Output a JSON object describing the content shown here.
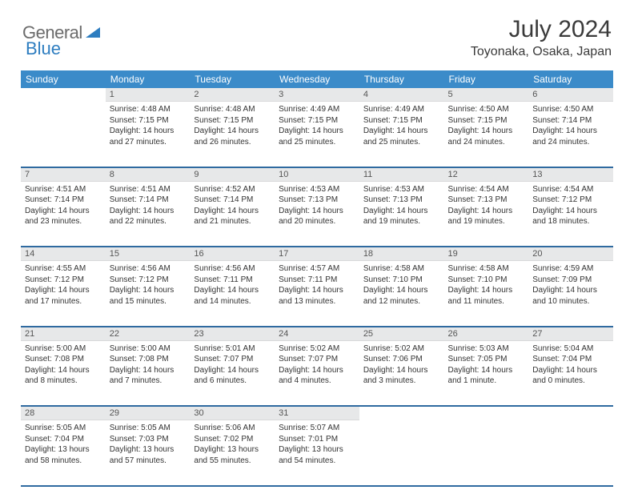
{
  "brand": {
    "part1": "General",
    "part2": "Blue"
  },
  "title": "July 2024",
  "location": "Toyonaka, Osaka, Japan",
  "colors": {
    "header_bg": "#3b8bc9",
    "header_text": "#ffffff",
    "daynum_bg": "#e7e8e9",
    "row_divider": "#2f6aa0",
    "text": "#333333",
    "brand_gray": "#6b6b6b",
    "brand_blue": "#2d7dc0"
  },
  "day_names": [
    "Sunday",
    "Monday",
    "Tuesday",
    "Wednesday",
    "Thursday",
    "Friday",
    "Saturday"
  ],
  "weeks": [
    {
      "nums": [
        "",
        "1",
        "2",
        "3",
        "4",
        "5",
        "6"
      ],
      "cells": [
        null,
        {
          "sunrise": "Sunrise: 4:48 AM",
          "sunset": "Sunset: 7:15 PM",
          "day1": "Daylight: 14 hours",
          "day2": "and 27 minutes."
        },
        {
          "sunrise": "Sunrise: 4:48 AM",
          "sunset": "Sunset: 7:15 PM",
          "day1": "Daylight: 14 hours",
          "day2": "and 26 minutes."
        },
        {
          "sunrise": "Sunrise: 4:49 AM",
          "sunset": "Sunset: 7:15 PM",
          "day1": "Daylight: 14 hours",
          "day2": "and 25 minutes."
        },
        {
          "sunrise": "Sunrise: 4:49 AM",
          "sunset": "Sunset: 7:15 PM",
          "day1": "Daylight: 14 hours",
          "day2": "and 25 minutes."
        },
        {
          "sunrise": "Sunrise: 4:50 AM",
          "sunset": "Sunset: 7:15 PM",
          "day1": "Daylight: 14 hours",
          "day2": "and 24 minutes."
        },
        {
          "sunrise": "Sunrise: 4:50 AM",
          "sunset": "Sunset: 7:14 PM",
          "day1": "Daylight: 14 hours",
          "day2": "and 24 minutes."
        }
      ]
    },
    {
      "nums": [
        "7",
        "8",
        "9",
        "10",
        "11",
        "12",
        "13"
      ],
      "cells": [
        {
          "sunrise": "Sunrise: 4:51 AM",
          "sunset": "Sunset: 7:14 PM",
          "day1": "Daylight: 14 hours",
          "day2": "and 23 minutes."
        },
        {
          "sunrise": "Sunrise: 4:51 AM",
          "sunset": "Sunset: 7:14 PM",
          "day1": "Daylight: 14 hours",
          "day2": "and 22 minutes."
        },
        {
          "sunrise": "Sunrise: 4:52 AM",
          "sunset": "Sunset: 7:14 PM",
          "day1": "Daylight: 14 hours",
          "day2": "and 21 minutes."
        },
        {
          "sunrise": "Sunrise: 4:53 AM",
          "sunset": "Sunset: 7:13 PM",
          "day1": "Daylight: 14 hours",
          "day2": "and 20 minutes."
        },
        {
          "sunrise": "Sunrise: 4:53 AM",
          "sunset": "Sunset: 7:13 PM",
          "day1": "Daylight: 14 hours",
          "day2": "and 19 minutes."
        },
        {
          "sunrise": "Sunrise: 4:54 AM",
          "sunset": "Sunset: 7:13 PM",
          "day1": "Daylight: 14 hours",
          "day2": "and 19 minutes."
        },
        {
          "sunrise": "Sunrise: 4:54 AM",
          "sunset": "Sunset: 7:12 PM",
          "day1": "Daylight: 14 hours",
          "day2": "and 18 minutes."
        }
      ]
    },
    {
      "nums": [
        "14",
        "15",
        "16",
        "17",
        "18",
        "19",
        "20"
      ],
      "cells": [
        {
          "sunrise": "Sunrise: 4:55 AM",
          "sunset": "Sunset: 7:12 PM",
          "day1": "Daylight: 14 hours",
          "day2": "and 17 minutes."
        },
        {
          "sunrise": "Sunrise: 4:56 AM",
          "sunset": "Sunset: 7:12 PM",
          "day1": "Daylight: 14 hours",
          "day2": "and 15 minutes."
        },
        {
          "sunrise": "Sunrise: 4:56 AM",
          "sunset": "Sunset: 7:11 PM",
          "day1": "Daylight: 14 hours",
          "day2": "and 14 minutes."
        },
        {
          "sunrise": "Sunrise: 4:57 AM",
          "sunset": "Sunset: 7:11 PM",
          "day1": "Daylight: 14 hours",
          "day2": "and 13 minutes."
        },
        {
          "sunrise": "Sunrise: 4:58 AM",
          "sunset": "Sunset: 7:10 PM",
          "day1": "Daylight: 14 hours",
          "day2": "and 12 minutes."
        },
        {
          "sunrise": "Sunrise: 4:58 AM",
          "sunset": "Sunset: 7:10 PM",
          "day1": "Daylight: 14 hours",
          "day2": "and 11 minutes."
        },
        {
          "sunrise": "Sunrise: 4:59 AM",
          "sunset": "Sunset: 7:09 PM",
          "day1": "Daylight: 14 hours",
          "day2": "and 10 minutes."
        }
      ]
    },
    {
      "nums": [
        "21",
        "22",
        "23",
        "24",
        "25",
        "26",
        "27"
      ],
      "cells": [
        {
          "sunrise": "Sunrise: 5:00 AM",
          "sunset": "Sunset: 7:08 PM",
          "day1": "Daylight: 14 hours",
          "day2": "and 8 minutes."
        },
        {
          "sunrise": "Sunrise: 5:00 AM",
          "sunset": "Sunset: 7:08 PM",
          "day1": "Daylight: 14 hours",
          "day2": "and 7 minutes."
        },
        {
          "sunrise": "Sunrise: 5:01 AM",
          "sunset": "Sunset: 7:07 PM",
          "day1": "Daylight: 14 hours",
          "day2": "and 6 minutes."
        },
        {
          "sunrise": "Sunrise: 5:02 AM",
          "sunset": "Sunset: 7:07 PM",
          "day1": "Daylight: 14 hours",
          "day2": "and 4 minutes."
        },
        {
          "sunrise": "Sunrise: 5:02 AM",
          "sunset": "Sunset: 7:06 PM",
          "day1": "Daylight: 14 hours",
          "day2": "and 3 minutes."
        },
        {
          "sunrise": "Sunrise: 5:03 AM",
          "sunset": "Sunset: 7:05 PM",
          "day1": "Daylight: 14 hours",
          "day2": "and 1 minute."
        },
        {
          "sunrise": "Sunrise: 5:04 AM",
          "sunset": "Sunset: 7:04 PM",
          "day1": "Daylight: 14 hours",
          "day2": "and 0 minutes."
        }
      ]
    },
    {
      "nums": [
        "28",
        "29",
        "30",
        "31",
        "",
        "",
        ""
      ],
      "cells": [
        {
          "sunrise": "Sunrise: 5:05 AM",
          "sunset": "Sunset: 7:04 PM",
          "day1": "Daylight: 13 hours",
          "day2": "and 58 minutes."
        },
        {
          "sunrise": "Sunrise: 5:05 AM",
          "sunset": "Sunset: 7:03 PM",
          "day1": "Daylight: 13 hours",
          "day2": "and 57 minutes."
        },
        {
          "sunrise": "Sunrise: 5:06 AM",
          "sunset": "Sunset: 7:02 PM",
          "day1": "Daylight: 13 hours",
          "day2": "and 55 minutes."
        },
        {
          "sunrise": "Sunrise: 5:07 AM",
          "sunset": "Sunset: 7:01 PM",
          "day1": "Daylight: 13 hours",
          "day2": "and 54 minutes."
        },
        null,
        null,
        null
      ]
    }
  ]
}
